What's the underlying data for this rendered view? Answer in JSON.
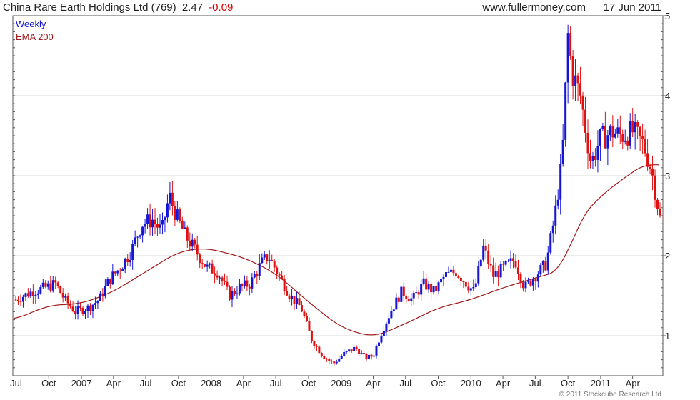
{
  "header": {
    "company": "China Rare Earth Holdings Ltd (769)",
    "price": "2.47",
    "change": "-0.09",
    "site": "www.fullermoney.com",
    "date": "17 Jun 2011"
  },
  "copyright": "© 2011 Stockcube Research Ltd",
  "colors": {
    "up": "#1515d8",
    "down": "#e01010",
    "ema": "#a01818",
    "grid": "#d8d8d8",
    "frame": "#555555"
  },
  "chart_data": {
    "type": "candlestick",
    "interval": "Weekly",
    "x_range": [
      "2006-06-26",
      "2011-06-17"
    ],
    "ylim": [
      0.5,
      5.0
    ],
    "yticks": [
      1,
      2,
      3,
      4,
      5
    ],
    "grid": true,
    "legend": {
      "position": "top-left",
      "entries": [
        "Weekly",
        "EMA 200"
      ]
    },
    "xticks": [
      {
        "label": "Jul",
        "date": "2006-07-01"
      },
      {
        "label": "Oct",
        "date": "2006-10-01"
      },
      {
        "label": "2007",
        "date": "2007-01-01"
      },
      {
        "label": "Apr",
        "date": "2007-04-01"
      },
      {
        "label": "Jul",
        "date": "2007-07-01"
      },
      {
        "label": "Oct",
        "date": "2007-10-01"
      },
      {
        "label": "2008",
        "date": "2008-01-01"
      },
      {
        "label": "Apr",
        "date": "2008-04-01"
      },
      {
        "label": "Jul",
        "date": "2008-07-01"
      },
      {
        "label": "Oct",
        "date": "2008-10-01"
      },
      {
        "label": "2009",
        "date": "2009-01-01"
      },
      {
        "label": "Apr",
        "date": "2009-04-01"
      },
      {
        "label": "Jul",
        "date": "2009-07-01"
      },
      {
        "label": "Oct",
        "date": "2009-10-01"
      },
      {
        "label": "2010",
        "date": "2010-01-01"
      },
      {
        "label": "Apr",
        "date": "2010-04-01"
      },
      {
        "label": "Jul",
        "date": "2010-07-01"
      },
      {
        "label": "Oct",
        "date": "2010-10-01"
      },
      {
        "label": "2011",
        "date": "2011-01-01"
      },
      {
        "label": "Apr",
        "date": "2011-04-01"
      }
    ],
    "price_path": [
      [
        "2006-06-30",
        1.45
      ],
      [
        "2006-08-15",
        1.55
      ],
      [
        "2006-09-20",
        1.6
      ],
      [
        "2006-10-20",
        1.65
      ],
      [
        "2006-11-15",
        1.45
      ],
      [
        "2006-12-15",
        1.3
      ],
      [
        "2007-01-20",
        1.35
      ],
      [
        "2007-02-20",
        1.45
      ],
      [
        "2007-03-20",
        1.7
      ],
      [
        "2007-04-20",
        1.85
      ],
      [
        "2007-05-20",
        2.05
      ],
      [
        "2007-06-20",
        2.4
      ],
      [
        "2007-07-20",
        2.45
      ],
      [
        "2007-08-15",
        2.3
      ],
      [
        "2007-09-05",
        2.75
      ],
      [
        "2007-09-25",
        2.5
      ],
      [
        "2007-10-20",
        2.25
      ],
      [
        "2007-11-20",
        2.05
      ],
      [
        "2007-12-20",
        1.85
      ],
      [
        "2008-01-20",
        1.8
      ],
      [
        "2008-02-20",
        1.5
      ],
      [
        "2008-03-20",
        1.6
      ],
      [
        "2008-04-20",
        1.65
      ],
      [
        "2008-05-20",
        1.9
      ],
      [
        "2008-06-10",
        2.0
      ],
      [
        "2008-07-10",
        1.75
      ],
      [
        "2008-08-10",
        1.5
      ],
      [
        "2008-09-10",
        1.35
      ],
      [
        "2008-10-10",
        0.95
      ],
      [
        "2008-11-10",
        0.75
      ],
      [
        "2008-12-10",
        0.65
      ],
      [
        "2009-01-10",
        0.78
      ],
      [
        "2009-02-10",
        0.85
      ],
      [
        "2009-03-10",
        0.72
      ],
      [
        "2009-04-01",
        0.75
      ],
      [
        "2009-04-25",
        1.05
      ],
      [
        "2009-05-20",
        1.3
      ],
      [
        "2009-06-20",
        1.55
      ],
      [
        "2009-07-20",
        1.45
      ],
      [
        "2009-08-20",
        1.65
      ],
      [
        "2009-09-20",
        1.55
      ],
      [
        "2009-10-20",
        1.75
      ],
      [
        "2009-11-20",
        1.8
      ],
      [
        "2009-12-20",
        1.65
      ],
      [
        "2010-01-10",
        1.55
      ],
      [
        "2010-02-05",
        2.1
      ],
      [
        "2010-03-05",
        1.75
      ],
      [
        "2010-04-05",
        1.85
      ],
      [
        "2010-05-05",
        1.95
      ],
      [
        "2010-06-01",
        1.6
      ],
      [
        "2010-07-01",
        1.75
      ],
      [
        "2010-08-01",
        1.9
      ],
      [
        "2010-08-25",
        2.5
      ],
      [
        "2010-09-15",
        3.2
      ],
      [
        "2010-10-01",
        4.75
      ],
      [
        "2010-10-12",
        4.3
      ],
      [
        "2010-11-05",
        4.0
      ],
      [
        "2010-12-05",
        3.15
      ],
      [
        "2010-12-30",
        3.45
      ],
      [
        "2011-02-01",
        3.55
      ],
      [
        "2011-03-01",
        3.5
      ],
      [
        "2011-04-01",
        3.55
      ],
      [
        "2011-05-01",
        3.4
      ],
      [
        "2011-05-25",
        3.05
      ],
      [
        "2011-06-17",
        2.47
      ]
    ],
    "ema_path": [
      [
        "2006-06-26",
        1.2
      ],
      [
        "2006-10-01",
        1.38
      ],
      [
        "2007-01-01",
        1.4
      ],
      [
        "2007-04-01",
        1.55
      ],
      [
        "2007-07-01",
        1.8
      ],
      [
        "2007-10-01",
        2.05
      ],
      [
        "2007-12-15",
        2.1
      ],
      [
        "2008-04-01",
        1.98
      ],
      [
        "2008-07-01",
        1.78
      ],
      [
        "2008-10-01",
        1.42
      ],
      [
        "2009-01-01",
        1.1
      ],
      [
        "2009-04-01",
        0.98
      ],
      [
        "2009-07-01",
        1.15
      ],
      [
        "2009-10-01",
        1.35
      ],
      [
        "2010-01-01",
        1.45
      ],
      [
        "2010-04-01",
        1.6
      ],
      [
        "2010-07-01",
        1.72
      ],
      [
        "2010-09-15",
        1.82
      ],
      [
        "2010-11-01",
        2.45
      ],
      [
        "2011-01-01",
        2.75
      ],
      [
        "2011-04-01",
        3.05
      ],
      [
        "2011-05-15",
        3.17
      ],
      [
        "2011-06-17",
        3.12
      ]
    ]
  }
}
